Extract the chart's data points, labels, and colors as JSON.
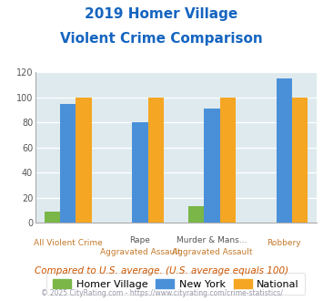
{
  "title_line1": "2019 Homer Village",
  "title_line2": "Violent Crime Comparison",
  "cat_labels_top": [
    "",
    "Rape",
    "Murder & Mans...",
    ""
  ],
  "cat_labels_bottom": [
    "All Violent Crime",
    "Aggravated Assault",
    "Aggravated Assault",
    "Robbery"
  ],
  "homer_village": [
    9,
    0,
    13,
    0
  ],
  "new_york": [
    95,
    80,
    91,
    115
  ],
  "national": [
    100,
    100,
    100,
    100
  ],
  "colors_homer": "#7ab648",
  "colors_ny": "#4a90d9",
  "colors_national": "#f5a623",
  "ylim": [
    0,
    120
  ],
  "yticks": [
    0,
    20,
    40,
    60,
    80,
    100,
    120
  ],
  "plot_bg": "#deeaee",
  "title_color": "#1565c0",
  "footer_text": "Compared to U.S. average. (U.S. average equals 100)",
  "copyright_text": "© 2025 CityRating.com - https://www.cityrating.com/crime-statistics/",
  "footer_color": "#cc5500",
  "copyright_color": "#9999aa",
  "legend_labels": [
    "Homer Village",
    "New York",
    "National"
  ]
}
